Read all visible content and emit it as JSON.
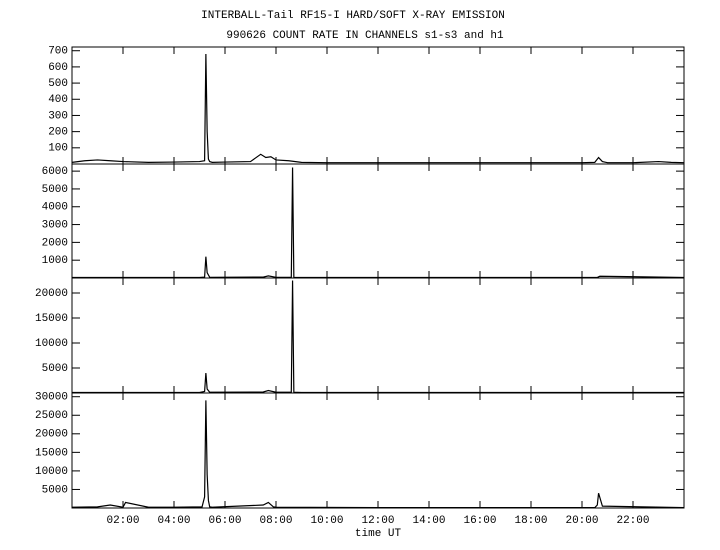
{
  "chart_data": [
    {
      "type": "line",
      "title": "INTERBALL-Tail RF15-I HARD/SOFT X-RAY EMISSION",
      "subtitle": "990626  COUNT RATE IN CHANNELS s1-s3 and h1",
      "xlim": [
        0,
        24
      ],
      "ylim": [
        0,
        723
      ],
      "yticks": [
        100,
        200,
        300,
        400,
        500,
        600,
        700
      ],
      "series": [
        {
          "color": "#000000",
          "x": [
            0,
            0.5,
            1.0,
            1.5,
            2.0,
            3.0,
            4.0,
            5.0,
            5.2,
            5.25,
            5.3,
            5.35,
            5.4,
            5.5,
            6.0,
            7.0,
            7.4,
            7.6,
            7.8,
            8.0,
            8.5,
            9.0,
            10,
            12,
            14,
            16,
            18,
            20,
            20.5,
            20.65,
            20.8,
            21,
            22,
            23,
            23.5,
            24
          ],
          "values": [
            10,
            20,
            25,
            20,
            15,
            10,
            12,
            15,
            20,
            680,
            200,
            30,
            15,
            10,
            12,
            15,
            60,
            40,
            45,
            25,
            20,
            10,
            8,
            8,
            8,
            8,
            8,
            8,
            10,
            40,
            15,
            8,
            8,
            15,
            10,
            8
          ]
        }
      ]
    },
    {
      "type": "line",
      "xlim": [
        0,
        24
      ],
      "ylim": [
        0,
        6400
      ],
      "yticks": [
        1000,
        2000,
        3000,
        4000,
        5000,
        6000
      ],
      "series": [
        {
          "color": "#000000",
          "x": [
            0,
            5.0,
            5.2,
            5.25,
            5.3,
            5.4,
            7.5,
            7.7,
            8.0,
            8.6,
            8.65,
            8.7,
            9.0,
            12,
            20.6,
            20.7,
            24
          ],
          "values": [
            30,
            30,
            50,
            1200,
            300,
            40,
            50,
            120,
            40,
            40,
            6200,
            40,
            30,
            30,
            30,
            100,
            30
          ]
        }
      ]
    },
    {
      "type": "line",
      "xlim": [
        0,
        24
      ],
      "ylim": [
        0,
        23000
      ],
      "yticks": [
        5000,
        10000,
        15000,
        20000
      ],
      "series": [
        {
          "color": "#000000",
          "x": [
            0,
            5.0,
            5.2,
            5.25,
            5.3,
            5.4,
            7.5,
            7.7,
            8.0,
            8.6,
            8.65,
            8.7,
            9,
            24
          ],
          "values": [
            100,
            100,
            300,
            4000,
            800,
            150,
            200,
            500,
            150,
            150,
            22500,
            150,
            100,
            100
          ]
        }
      ]
    },
    {
      "type": "line",
      "xlim": [
        0,
        24
      ],
      "ylim": [
        0,
        31000
      ],
      "yticks": [
        5000,
        10000,
        15000,
        20000,
        25000,
        30000
      ],
      "xlabel": "time UT",
      "xticks": [
        {
          "value": 2,
          "label": "02:00"
        },
        {
          "value": 4,
          "label": "04:00"
        },
        {
          "value": 6,
          "label": "06:00"
        },
        {
          "value": 8,
          "label": "08:00"
        },
        {
          "value": 10,
          "label": "10:00"
        },
        {
          "value": 12,
          "label": "12:00"
        },
        {
          "value": 14,
          "label": "14:00"
        },
        {
          "value": 16,
          "label": "16:00"
        },
        {
          "value": 18,
          "label": "18:00"
        },
        {
          "value": 20,
          "label": "20:00"
        },
        {
          "value": 22,
          "label": "22:00"
        }
      ],
      "series": [
        {
          "color": "#000000",
          "x": [
            0,
            1.0,
            1.5,
            2.0,
            2.1,
            3,
            4,
            5.1,
            5.2,
            5.25,
            5.3,
            5.35,
            5.4,
            5.5,
            7.5,
            7.7,
            7.9,
            8.0,
            12,
            20.5,
            20.6,
            20.65,
            20.8,
            24
          ],
          "values": [
            200,
            300,
            800,
            200,
            1500,
            200,
            200,
            300,
            3000,
            29000,
            9000,
            2000,
            300,
            200,
            800,
            1500,
            300,
            200,
            100,
            100,
            800,
            4000,
            500,
            100
          ]
        }
      ]
    }
  ]
}
